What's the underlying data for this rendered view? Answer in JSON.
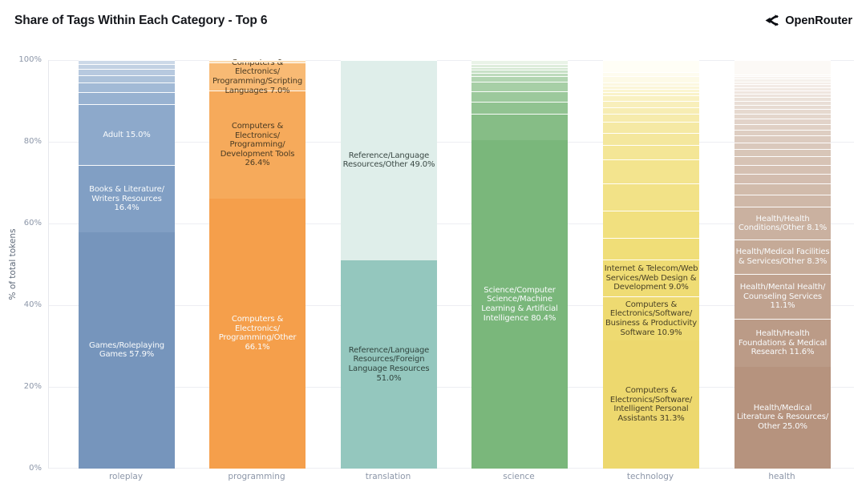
{
  "header": {
    "title": "Share of Tags Within Each Category - Top 6",
    "brand": "OpenRouter"
  },
  "chart_data": {
    "type": "bar",
    "stacked": true,
    "normalized": "percent",
    "title": "Share of Tags Within Each Category - Top 6",
    "ylabel": "% of total tokens",
    "ylim": [
      0,
      100
    ],
    "yticks": [
      "0%",
      "20%",
      "40%",
      "60%",
      "80%",
      "100%"
    ],
    "grid": "horizontal",
    "legend": "none",
    "categories": [
      "roleplay",
      "programming",
      "translation",
      "science",
      "technology",
      "health"
    ],
    "bars": [
      {
        "category": "roleplay",
        "segments": [
          {
            "label": "Games/Roleplaying Games 57.9%",
            "value": 57.9,
            "color": "#7695bc",
            "text_color": "#f9fbfc"
          },
          {
            "label": "Books & Literature/Writers Resources 16.4%",
            "value": 16.4,
            "color": "#819fc4",
            "text_color": "#f9fbfc"
          },
          {
            "label": "Adult 15.0%",
            "value": 15.0,
            "color": "#8da9cb",
            "text_color": "#f9fbfc"
          }
        ],
        "strips": {
          "values": [
            2.8,
            2.5,
            1.6,
            1.6,
            1.2,
            1.0
          ],
          "color_from": "#98b2d1",
          "color_to": "#ccd9e8"
        }
      },
      {
        "category": "programming",
        "segments": [
          {
            "label": "Computers & Electronics/Programming/Other 66.1%",
            "value": 66.1,
            "color": "#f59f4b",
            "text_color": "#f9fbfc"
          },
          {
            "label": "Computers & Electronics/Programming/Development Tools 26.4%",
            "value": 26.4,
            "color": "#f6aa5b",
            "text_color": "#4a3b23"
          },
          {
            "label": "Computers & Electronics/Programming/Scripting Languages 7.0%",
            "value": 7.0,
            "color": "#f8ba74",
            "text_color": "#4a3b23"
          }
        ],
        "strips": {
          "values": [
            0.5
          ],
          "color_from": "#fbdcb2",
          "color_to": "#fbdcb2"
        }
      },
      {
        "category": "translation",
        "segments": [
          {
            "label": "Reference/Language Resources/Foreign Language Resources 51.0%",
            "value": 51.0,
            "color": "#94c7be",
            "text_color": "#31453f"
          },
          {
            "label": "Reference/Language Resources/Other 49.0%",
            "value": 49.0,
            "color": "#dfeeea",
            "text_color": "#3c4a46"
          }
        ]
      },
      {
        "category": "science",
        "segments": [
          {
            "label": "Science/Computer Science/Machine Learning & Artificial Intelligence 80.4%",
            "value": 80.4,
            "color": "#7ab77b",
            "text_color": "#f9fbfc"
          }
        ],
        "strips": {
          "values": [
            6.5,
            2.9,
            2.5,
            2.5,
            1.2,
            0.8,
            0.8,
            0.6,
            0.8,
            1.0
          ],
          "color_from": "#86bd86",
          "color_to": "#e9f3e7"
        }
      },
      {
        "category": "technology",
        "segments": [
          {
            "label": "Computers & Electronics/Software/Intelligent Personal Assistants 31.3%",
            "value": 31.3,
            "color": "#edd86e",
            "text_color": "#4a4226"
          },
          {
            "label": "Computers & Electronics/Software/Business & Productivity Software 10.9%",
            "value": 10.9,
            "color": "#eeda71",
            "text_color": "#4a4226"
          },
          {
            "label": "Internet & Telecom/Web Services/Web Design & Development 9.0%",
            "value": 9.0,
            "color": "#efdc74",
            "text_color": "#4a4226"
          }
        ],
        "strips": {
          "values": [
            5.3,
            6.7,
            6.7,
            5.7,
            3.7,
            2.9,
            2.7,
            2.0,
            1.6,
            1.6,
            1.2,
            0.8,
            0.8,
            0.8,
            0.8,
            1.6,
            1.0,
            2.9
          ],
          "color_from": "#f0de78",
          "color_to": "#fffef6"
        }
      },
      {
        "category": "health",
        "segments": [
          {
            "label": "Health/Medical Literature & Resources/Other 25.0%",
            "value": 25.0,
            "color": "#b6937e",
            "text_color": "#f9fbfc"
          },
          {
            "label": "Health/Health Foundations & Medical Research 11.6%",
            "value": 11.6,
            "color": "#bb9b87",
            "text_color": "#f9fbfc"
          },
          {
            "label": "Health/Mental Health/Counseling Services 11.1%",
            "value": 11.1,
            "color": "#c0a28f",
            "text_color": "#f9fbfc"
          },
          {
            "label": "Health/Medical Facilities & Services/Other 8.3%",
            "value": 8.3,
            "color": "#c5aa97",
            "text_color": "#f9fbfc"
          },
          {
            "label": "Health/Health Conditions/Other 8.1%",
            "value": 8.1,
            "color": "#cab1a0",
            "text_color": "#f9fbfc"
          }
        ],
        "strips": {
          "values": [
            3.0,
            2.7,
            2.4,
            2.2,
            2.0,
            1.8,
            1.7,
            1.6,
            1.5,
            1.4,
            1.3,
            1.2,
            1.1,
            1.0,
            1.0,
            0.9,
            0.9,
            0.8,
            0.8,
            0.7,
            0.7,
            0.6,
            0.6,
            0.5,
            3.5
          ],
          "color_from": "#cfb8a8",
          "color_to": "#fcf9f6"
        }
      }
    ]
  }
}
